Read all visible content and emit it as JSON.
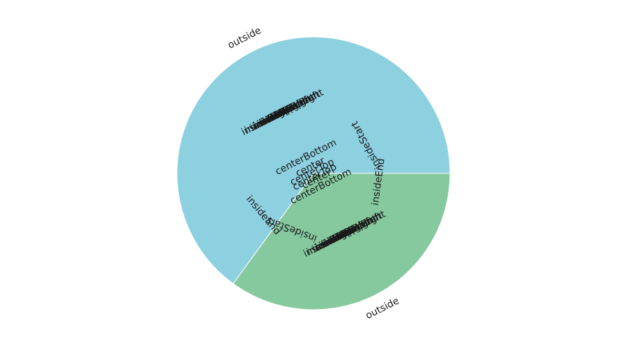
{
  "chart_data": {
    "type": "pie",
    "title": "",
    "start_angle_deg": 0,
    "direction": "counterclockwise",
    "slices": [
      {
        "value": 65,
        "color": "#8dd0e0"
      },
      {
        "value": 35,
        "color": "#86c99e"
      }
    ],
    "label_positions": [
      "outside",
      "inside",
      "insideStart",
      "insideEnd",
      "insideLeft",
      "insideRight",
      "insideTop",
      "insideBottom",
      "insideTopLeft",
      "insideTopRight",
      "insideBottomLeft",
      "insideBottomRight",
      "left",
      "right",
      "top",
      "bottom",
      "center",
      "centerTop",
      "centerBottom"
    ],
    "legend": "none",
    "grid": false
  }
}
